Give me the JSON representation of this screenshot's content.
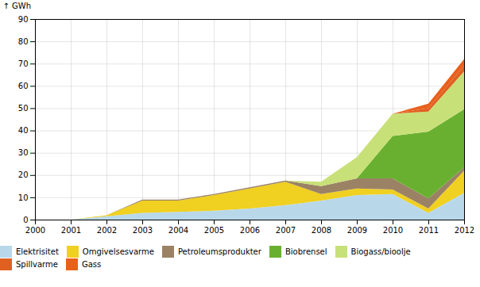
{
  "chart_data": {
    "type": "area",
    "stacked": true,
    "ylabel": "GWh",
    "x": [
      2000,
      2001,
      2002,
      2003,
      2004,
      2005,
      2006,
      2007,
      2008,
      2009,
      2010,
      2011,
      2012
    ],
    "series": [
      {
        "name": "Elektrisitet",
        "color": "#b8d8ea",
        "values": [
          0.0,
          0.0,
          1.5,
          3.0,
          3.5,
          4.0,
          5.0,
          6.5,
          8.5,
          11.0,
          11.5,
          3.0,
          12.0
        ]
      },
      {
        "name": "Omgivelsesvarme",
        "color": "#f0d020",
        "values": [
          0.0,
          0.0,
          0.5,
          5.5,
          5.0,
          7.0,
          9.0,
          10.5,
          3.0,
          3.0,
          2.0,
          2.0,
          10.0
        ]
      },
      {
        "name": "Petroleumsprodukter",
        "color": "#9b8265",
        "values": [
          0.0,
          0.0,
          0.0,
          0.5,
          0.5,
          0.5,
          0.5,
          0.5,
          3.5,
          4.5,
          5.0,
          4.5,
          1.5
        ]
      },
      {
        "name": "Biobrensel",
        "color": "#6ab030",
        "values": [
          0.0,
          0.0,
          0.0,
          0.0,
          0.0,
          0.0,
          0.0,
          0.0,
          0.0,
          0.0,
          19.0,
          30.0,
          26.0
        ]
      },
      {
        "name": "Biogass/bioolje",
        "color": "#c8e078",
        "values": [
          0.0,
          0.0,
          0.0,
          0.0,
          0.0,
          0.0,
          0.0,
          0.0,
          2.0,
          9.5,
          10.0,
          9.0,
          17.0
        ]
      },
      {
        "name": "Spillvarme",
        "color": "#e06020",
        "values": [
          0.0,
          0.0,
          0.0,
          0.0,
          0.0,
          0.0,
          0.0,
          0.0,
          0.0,
          0.0,
          0.0,
          1.5,
          2.5
        ]
      },
      {
        "name": "Gass",
        "color": "#e8601c",
        "values": [
          0.0,
          0.0,
          0.0,
          0.0,
          0.0,
          0.0,
          0.0,
          0.0,
          0.0,
          0.0,
          0.0,
          2.0,
          3.0
        ]
      }
    ],
    "xlim": [
      2000,
      2012
    ],
    "xticks": [
      2000,
      2001,
      2002,
      2003,
      2004,
      2005,
      2006,
      2007,
      2008,
      2009,
      2010,
      2011,
      2012
    ],
    "ylim": [
      0,
      90
    ],
    "yticks": [
      0,
      10,
      20,
      30,
      40,
      50,
      60,
      70,
      80,
      90
    ],
    "grid": true,
    "legend": "bottom"
  }
}
